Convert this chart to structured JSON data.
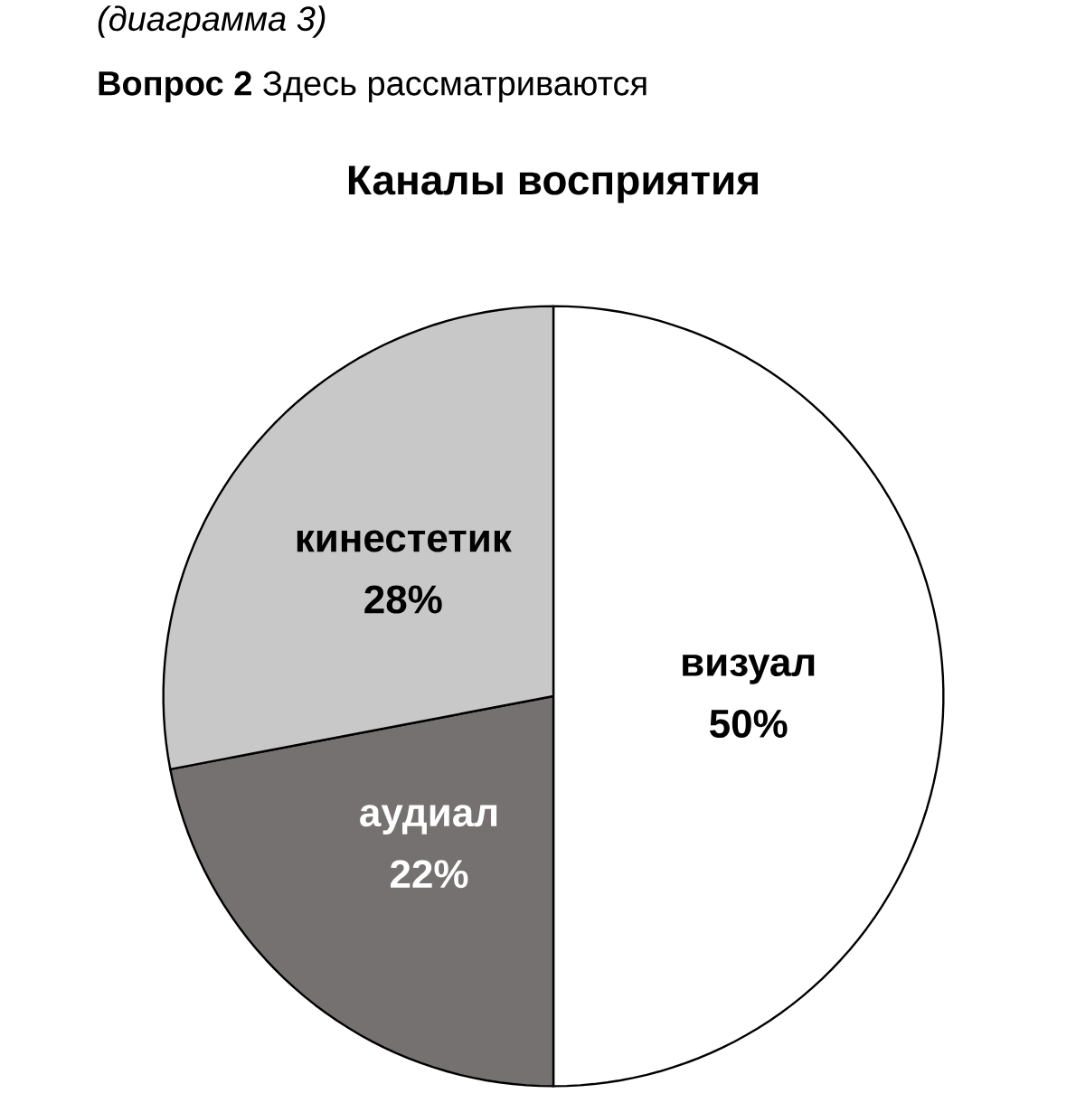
{
  "chart_data": {
    "type": "pie",
    "title": "Каналы восприятия",
    "annotations": [
      "(диаграмма 3)",
      "**Вопрос 2** Здесь рассматриваются"
    ],
    "categories": [
      "визуал",
      "аудиал",
      "кинестетик"
    ],
    "values": [
      50,
      22,
      28
    ],
    "value_labels": [
      "50%",
      "22%",
      "28%"
    ],
    "colors": [
      "#ffffff",
      "#767171",
      "#c8c8c8"
    ]
  }
}
